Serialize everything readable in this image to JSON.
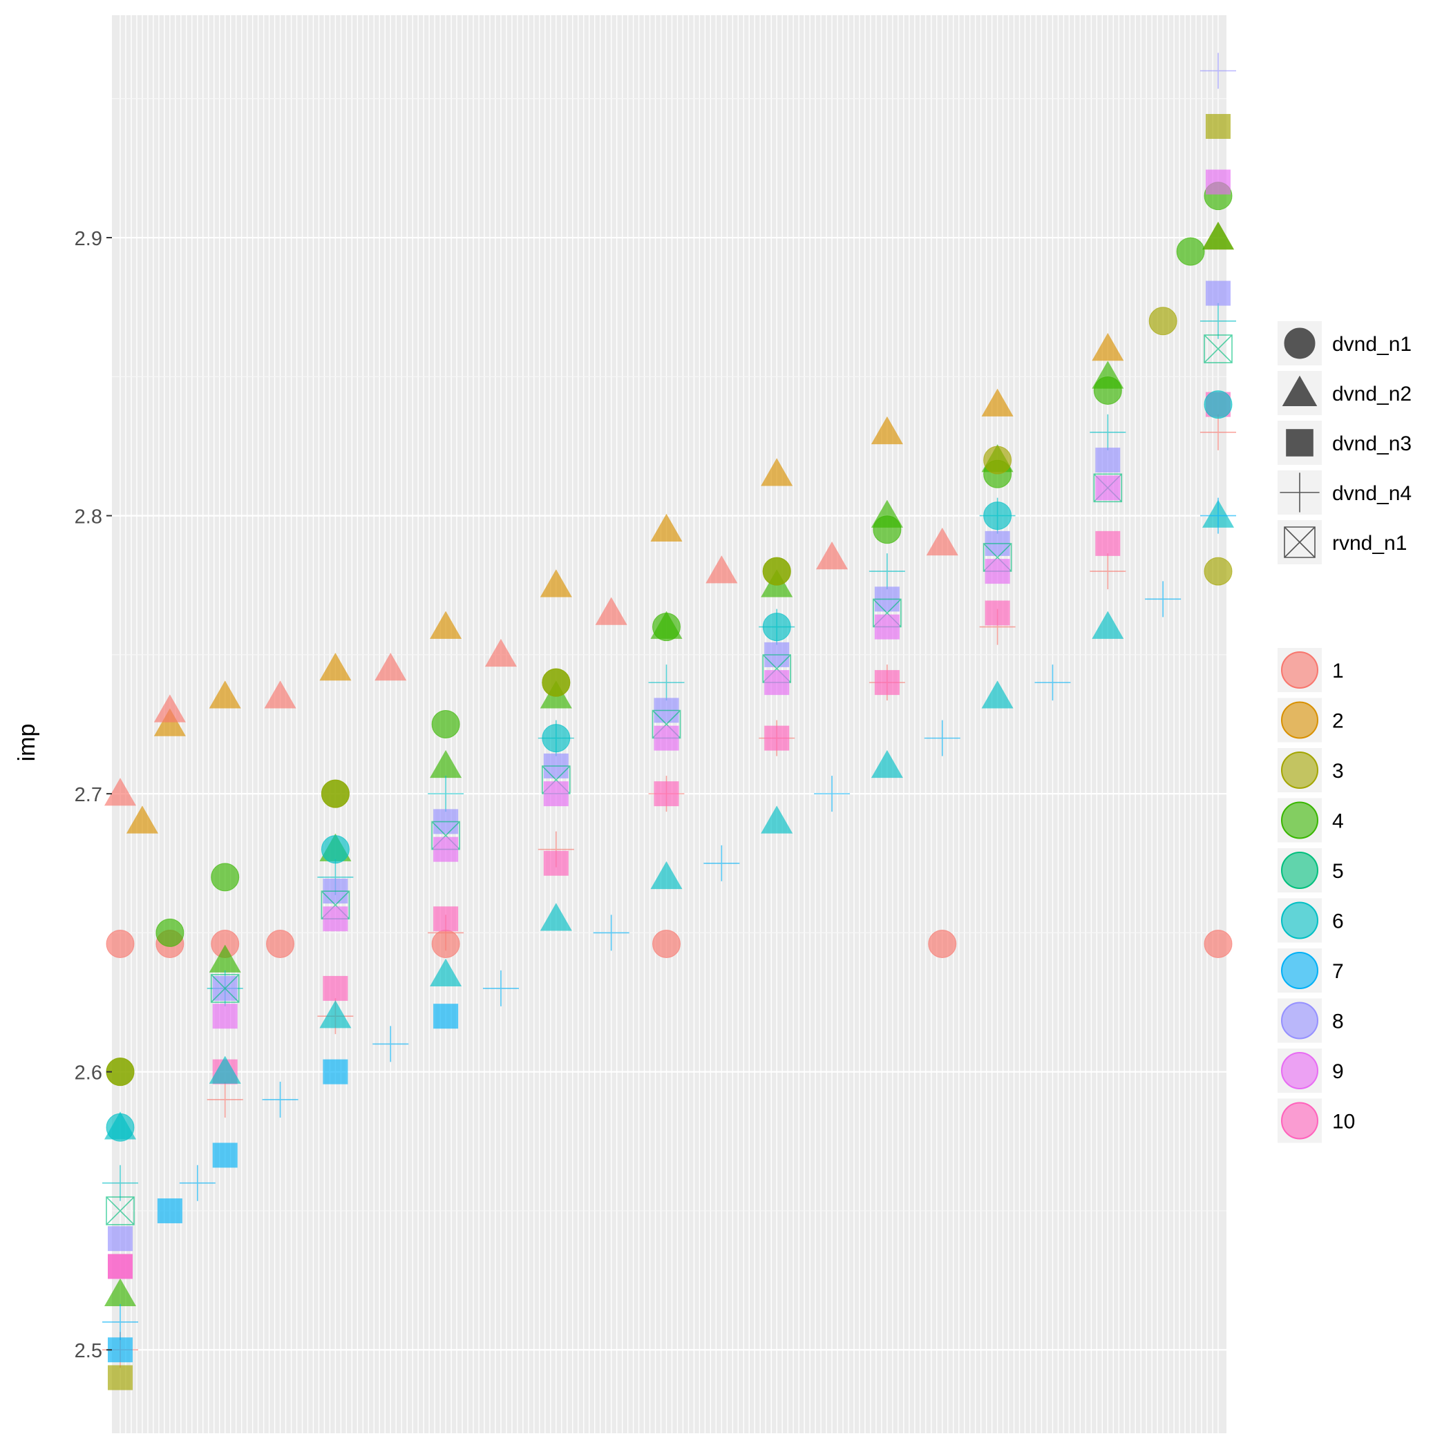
{
  "chart_data": {
    "type": "scatter",
    "ylabel": "imp",
    "xlabel": "",
    "ylim": [
      2.47,
      2.98
    ],
    "y_ticks": [
      "2.5",
      "2.6",
      "2.7",
      "2.8",
      "2.9"
    ],
    "x_count": 200,
    "legend_position": "right",
    "grid": true,
    "shape_legend": [
      {
        "label": "dvnd_n1",
        "shape": "circle"
      },
      {
        "label": "dvnd_n2",
        "shape": "triangle"
      },
      {
        "label": "dvnd_n3",
        "shape": "square"
      },
      {
        "label": "dvnd_n4",
        "shape": "plus"
      },
      {
        "label": "rvnd_n1",
        "shape": "boxcross"
      }
    ],
    "color_legend": [
      {
        "label": "1",
        "color": "#F8766D"
      },
      {
        "label": "2",
        "color": "#D89000"
      },
      {
        "label": "3",
        "color": "#A3A500"
      },
      {
        "label": "4",
        "color": "#39B600"
      },
      {
        "label": "5",
        "color": "#00BF7D"
      },
      {
        "label": "6",
        "color": "#00BFC4"
      },
      {
        "label": "7",
        "color": "#00B0F6"
      },
      {
        "label": "8",
        "color": "#9590FF"
      },
      {
        "label": "9",
        "color": "#E76BF3"
      },
      {
        "label": "10",
        "color": "#FF62BC"
      }
    ],
    "series": [
      {
        "name": "dvnd_n1 / 1",
        "shape": "circle",
        "color_index": 0,
        "x": [
          1,
          10,
          20,
          30,
          60,
          100,
          150,
          200
        ],
        "y": [
          2.646,
          2.646,
          2.646,
          2.646,
          2.646,
          2.646,
          2.646,
          2.646
        ]
      },
      {
        "name": "dvnd_n2 / 2",
        "shape": "triangle",
        "color_index": 1,
        "x": [
          5,
          10,
          20,
          40,
          60,
          80,
          100,
          120,
          140,
          160,
          180,
          200
        ],
        "y": [
          2.69,
          2.725,
          2.735,
          2.745,
          2.76,
          2.775,
          2.795,
          2.815,
          2.83,
          2.84,
          2.86,
          2.9
        ]
      },
      {
        "name": "dvnd_n2 / 1",
        "shape": "triangle",
        "color_index": 0,
        "x": [
          1,
          10,
          30,
          50,
          70,
          90,
          110,
          130,
          150
        ],
        "y": [
          2.7,
          2.73,
          2.735,
          2.745,
          2.75,
          2.765,
          2.78,
          2.785,
          2.79
        ]
      },
      {
        "name": "dvnd_n1 / 4",
        "shape": "circle",
        "color_index": 3,
        "x": [
          1,
          10,
          20,
          40,
          60,
          80,
          100,
          120,
          140,
          160,
          180,
          195,
          200
        ],
        "y": [
          2.6,
          2.65,
          2.67,
          2.7,
          2.725,
          2.74,
          2.76,
          2.78,
          2.795,
          2.815,
          2.845,
          2.895,
          2.915
        ]
      },
      {
        "name": "dvnd_n2 / 4",
        "shape": "triangle",
        "color_index": 3,
        "x": [
          1,
          20,
          40,
          60,
          80,
          100,
          120,
          140,
          160,
          180,
          200
        ],
        "y": [
          2.52,
          2.64,
          2.68,
          2.71,
          2.735,
          2.76,
          2.775,
          2.8,
          2.82,
          2.85,
          2.9
        ]
      },
      {
        "name": "dvnd_n4 / 6",
        "shape": "plus",
        "color_index": 5,
        "x": [
          1,
          20,
          40,
          60,
          80,
          100,
          120,
          140,
          160,
          180,
          200
        ],
        "y": [
          2.56,
          2.63,
          2.67,
          2.7,
          2.72,
          2.74,
          2.76,
          2.78,
          2.8,
          2.83,
          2.87
        ]
      },
      {
        "name": "dvnd_n3 / 8",
        "shape": "square",
        "color_index": 7,
        "x": [
          1,
          20,
          40,
          60,
          80,
          100,
          120,
          140,
          160,
          180,
          200
        ],
        "y": [
          2.54,
          2.63,
          2.665,
          2.69,
          2.71,
          2.73,
          2.75,
          2.77,
          2.79,
          2.82,
          2.88
        ]
      },
      {
        "name": "rvnd_n1 / 5",
        "shape": "boxcross",
        "color_index": 4,
        "x": [
          1,
          20,
          40,
          60,
          80,
          100,
          120,
          140,
          160,
          180,
          200
        ],
        "y": [
          2.55,
          2.63,
          2.66,
          2.685,
          2.705,
          2.725,
          2.745,
          2.765,
          2.785,
          2.81,
          2.86
        ]
      },
      {
        "name": "dvnd_n3 / 9",
        "shape": "square",
        "color_index": 8,
        "x": [
          1,
          20,
          40,
          60,
          80,
          100,
          120,
          140,
          160,
          180,
          200
        ],
        "y": [
          2.53,
          2.62,
          2.655,
          2.68,
          2.7,
          2.72,
          2.74,
          2.76,
          2.78,
          2.81,
          2.92
        ]
      },
      {
        "name": "dvnd_n4 / 1",
        "shape": "plus",
        "color_index": 0,
        "x": [
          1,
          20,
          40,
          60,
          80,
          100,
          120,
          140,
          160,
          180,
          200
        ],
        "y": [
          2.5,
          2.59,
          2.62,
          2.65,
          2.68,
          2.7,
          2.72,
          2.74,
          2.76,
          2.78,
          2.83
        ]
      },
      {
        "name": "dvnd_n3 / 10",
        "shape": "square",
        "color_index": 9,
        "x": [
          1,
          20,
          40,
          60,
          80,
          100,
          120,
          140,
          160,
          180,
          200
        ],
        "y": [
          2.53,
          2.6,
          2.63,
          2.655,
          2.675,
          2.7,
          2.72,
          2.74,
          2.765,
          2.79,
          2.84
        ]
      },
      {
        "name": "dvnd_n2 / 6",
        "shape": "triangle",
        "color_index": 5,
        "x": [
          1,
          20,
          40,
          60,
          80,
          100,
          120,
          140,
          160,
          180,
          200
        ],
        "y": [
          2.58,
          2.6,
          2.62,
          2.635,
          2.655,
          2.67,
          2.69,
          2.71,
          2.735,
          2.76,
          2.8
        ]
      },
      {
        "name": "dvnd_n4 / 7",
        "shape": "plus",
        "color_index": 6,
        "x": [
          1,
          15,
          30,
          50,
          70,
          90,
          110,
          130,
          150,
          170,
          190,
          200
        ],
        "y": [
          2.51,
          2.56,
          2.59,
          2.61,
          2.63,
          2.65,
          2.675,
          2.7,
          2.72,
          2.74,
          2.77,
          2.8
        ]
      },
      {
        "name": "dvnd_n3 / 7",
        "shape": "square",
        "color_index": 6,
        "x": [
          1,
          10,
          20,
          40,
          60
        ],
        "y": [
          2.5,
          2.55,
          2.57,
          2.6,
          2.62
        ]
      },
      {
        "name": "dvnd_n1 / 6",
        "shape": "circle",
        "color_index": 5,
        "x": [
          1,
          40,
          80,
          120,
          160,
          200
        ],
        "y": [
          2.58,
          2.68,
          2.72,
          2.76,
          2.8,
          2.84
        ]
      },
      {
        "name": "dvnd_n1 / 3",
        "shape": "circle",
        "color_index": 2,
        "x": [
          1,
          40,
          80,
          120,
          160,
          190,
          200
        ],
        "y": [
          2.6,
          2.7,
          2.74,
          2.78,
          2.82,
          2.87,
          2.78
        ]
      },
      {
        "name": "dvnd_n3 / 3",
        "shape": "square",
        "color_index": 2,
        "x": [
          1,
          200
        ],
        "y": [
          2.49,
          2.94
        ]
      },
      {
        "name": "dvnd_n4 / 8",
        "shape": "plus",
        "color_index": 7,
        "x": [
          200
        ],
        "y": [
          2.96
        ]
      }
    ]
  }
}
